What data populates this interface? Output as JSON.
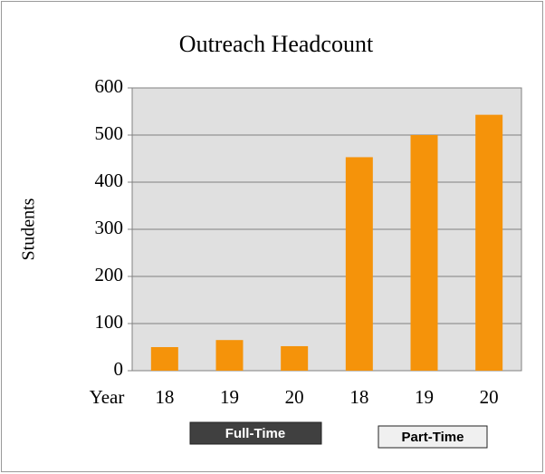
{
  "chart_data": {
    "type": "bar",
    "title": "Outreach Headcount",
    "y_label": "Students",
    "x_label": "Year",
    "categories": [
      "18",
      "19",
      "20",
      "18",
      "19",
      "20"
    ],
    "values": [
      50,
      65,
      52,
      453,
      500,
      543
    ],
    "color": "#f5930a",
    "groups": [
      "Full-Time",
      "Part-Time"
    ],
    "ylim": [
      0,
      600
    ],
    "yticks": [
      0,
      100,
      200,
      300,
      400,
      500,
      600
    ],
    "grid": true
  }
}
